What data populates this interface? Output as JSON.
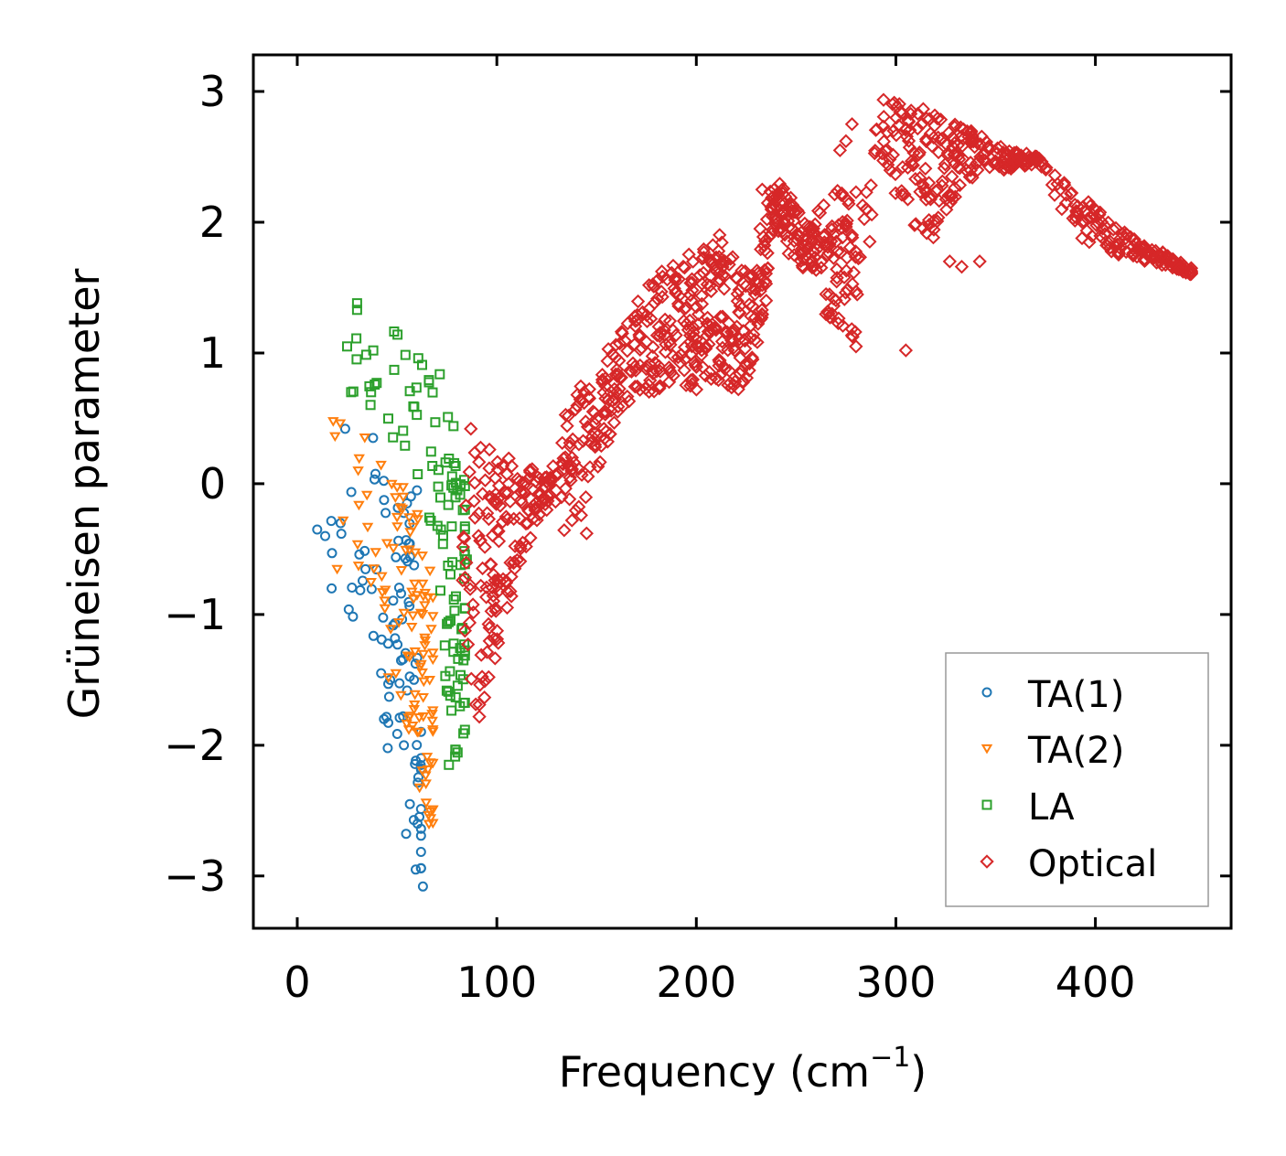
{
  "chart_data": {
    "type": "scatter",
    "title": "",
    "xlabel": "Frequency (cm",
    "xlabel_sup": "−1",
    "xlabel_end": ")",
    "ylabel": "Grüneisen parameter",
    "xlim": [
      -22,
      468
    ],
    "ylim": [
      -3.4,
      3.28
    ],
    "xticks": [
      0,
      100,
      200,
      300,
      400
    ],
    "xtick_labels": [
      "0",
      "100",
      "200",
      "300",
      "400"
    ],
    "yticks": [
      -3,
      -2,
      -1,
      0,
      1,
      2,
      3
    ],
    "ytick_labels": [
      "−3",
      "−2",
      "−1",
      "0",
      "1",
      "2",
      "3"
    ],
    "grid": false,
    "legend_position": "lower-right",
    "series": [
      {
        "name": "TA(1)",
        "label": "TA(1)",
        "marker": "circle",
        "color": "#1f77b4",
        "bands": [
          [
            0,
            0,
            0,
            0
          ],
          [
            12,
            -0.7,
            -0.25,
            3
          ],
          [
            20,
            -1.2,
            -0.3,
            6
          ],
          [
            30,
            -1.35,
            0.4,
            10
          ],
          [
            40,
            -1.5,
            0.3,
            14
          ],
          [
            48,
            -2.3,
            -0.1,
            16
          ],
          [
            53,
            -2.6,
            -0.05,
            18
          ],
          [
            58,
            -2.9,
            -0.1,
            14
          ],
          [
            62,
            -3.1,
            -1.8,
            10
          ]
        ],
        "points": [
          [
            24,
            0.42
          ],
          [
            38,
            0.35
          ],
          [
            60,
            -0.05
          ],
          [
            55,
            -0.15
          ],
          [
            14,
            -0.4
          ],
          [
            10,
            -0.35
          ],
          [
            63,
            -3.08
          ]
        ]
      },
      {
        "name": "TA(2)",
        "label": "TA(2)",
        "marker": "triangle-down",
        "color": "#ff7f0e",
        "bands": [
          [
            18,
            -0.65,
            0.5,
            2
          ],
          [
            28,
            -0.6,
            0.45,
            8
          ],
          [
            38,
            -1.3,
            0.35,
            12
          ],
          [
            48,
            -1.6,
            0.1,
            16
          ],
          [
            55,
            -1.9,
            -0.05,
            20
          ],
          [
            60,
            -2.2,
            -0.2,
            22
          ],
          [
            64,
            -2.6,
            -0.5,
            18
          ],
          [
            68,
            -2.7,
            -0.7,
            10
          ]
        ],
        "points": [
          [
            18,
            0.48
          ],
          [
            23,
            -0.28
          ],
          [
            20,
            -0.65
          ],
          [
            37,
            -0.75
          ],
          [
            60,
            -0.85
          ],
          [
            66,
            -2.6
          ]
        ]
      },
      {
        "name": "LA",
        "label": "LA",
        "marker": "square",
        "color": "#2ca02c",
        "bands": [
          [
            28,
            0.6,
            1.38,
            4
          ],
          [
            36,
            0.6,
            1.15,
            5
          ],
          [
            45,
            0.3,
            1.2,
            8
          ],
          [
            55,
            0.2,
            1.2,
            8
          ],
          [
            65,
            -0.1,
            1.0,
            14
          ],
          [
            72,
            -1.1,
            0.9,
            18
          ],
          [
            77,
            -2.1,
            0.6,
            24
          ],
          [
            81,
            -2.1,
            0.3,
            18
          ],
          [
            84,
            -1.9,
            0.0,
            12
          ]
        ],
        "points": [
          [
            30,
            1.38
          ],
          [
            30,
            1.33
          ],
          [
            25,
            1.05
          ],
          [
            27,
            0.7
          ],
          [
            37,
            0.7
          ],
          [
            85,
            -0.58
          ],
          [
            76,
            -2.15
          ]
        ]
      },
      {
        "name": "Optical",
        "label": "Optical",
        "marker": "diamond",
        "color": "#d62728",
        "bands": [
          [
            82,
            -1.9,
            0.3,
            30
          ],
          [
            92,
            -1.8,
            0.35,
            40
          ],
          [
            100,
            -1.3,
            0.3,
            40
          ],
          [
            110,
            -0.7,
            0.25,
            34
          ],
          [
            120,
            -0.3,
            0.1,
            22
          ],
          [
            127,
            -0.1,
            0.05,
            10
          ],
          [
            133,
            -0.4,
            0.5,
            24
          ],
          [
            140,
            -0.3,
            0.75,
            30
          ],
          [
            150,
            -0.05,
            1.0,
            34
          ],
          [
            160,
            0.5,
            1.1,
            30
          ],
          [
            170,
            0.7,
            1.45,
            34
          ],
          [
            180,
            0.7,
            1.6,
            40
          ],
          [
            190,
            0.8,
            1.7,
            44
          ],
          [
            200,
            0.7,
            1.85,
            48
          ],
          [
            210,
            0.8,
            1.95,
            48
          ],
          [
            220,
            0.7,
            1.7,
            44
          ],
          [
            230,
            0.9,
            1.6,
            34
          ],
          [
            238,
            1.9,
            2.4,
            40
          ],
          [
            248,
            1.7,
            2.2,
            36
          ],
          [
            258,
            1.6,
            2.0,
            26
          ],
          [
            265,
            1.2,
            2.2,
            28
          ],
          [
            272,
            1.1,
            2.45,
            30
          ],
          [
            280,
            1.1,
            1.9,
            16
          ],
          [
            293,
            2.5,
            2.96,
            30
          ],
          [
            305,
            2.0,
            2.9,
            44
          ],
          [
            318,
            1.85,
            2.85,
            44
          ],
          [
            330,
            2.2,
            2.75,
            40
          ],
          [
            345,
            2.4,
            2.65,
            40
          ],
          [
            360,
            2.4,
            2.55,
            34
          ],
          [
            372,
            2.45,
            2.5,
            12
          ],
          [
            385,
            2.0,
            2.3,
            24
          ],
          [
            398,
            1.8,
            2.15,
            30
          ],
          [
            412,
            1.75,
            1.95,
            30
          ],
          [
            425,
            1.7,
            1.82,
            30
          ],
          [
            438,
            1.65,
            1.75,
            24
          ],
          [
            448,
            1.6,
            1.65,
            8
          ]
        ],
        "points": [
          [
            278,
            2.75
          ],
          [
            275,
            2.62
          ],
          [
            272,
            2.55
          ],
          [
            280,
            2.23
          ],
          [
            233,
            2.25
          ],
          [
            232,
            1.95
          ],
          [
            235,
            1.4
          ],
          [
            280,
            1.05
          ],
          [
            305,
            1.02
          ],
          [
            327,
            1.7
          ],
          [
            333,
            1.66
          ],
          [
            342,
            1.7
          ],
          [
            265,
            1.45
          ],
          [
            268,
            1.3
          ],
          [
            145,
            -0.38
          ],
          [
            87,
            0.42
          ],
          [
            125,
            -0.2
          ],
          [
            160,
            0.7
          ]
        ]
      }
    ]
  }
}
